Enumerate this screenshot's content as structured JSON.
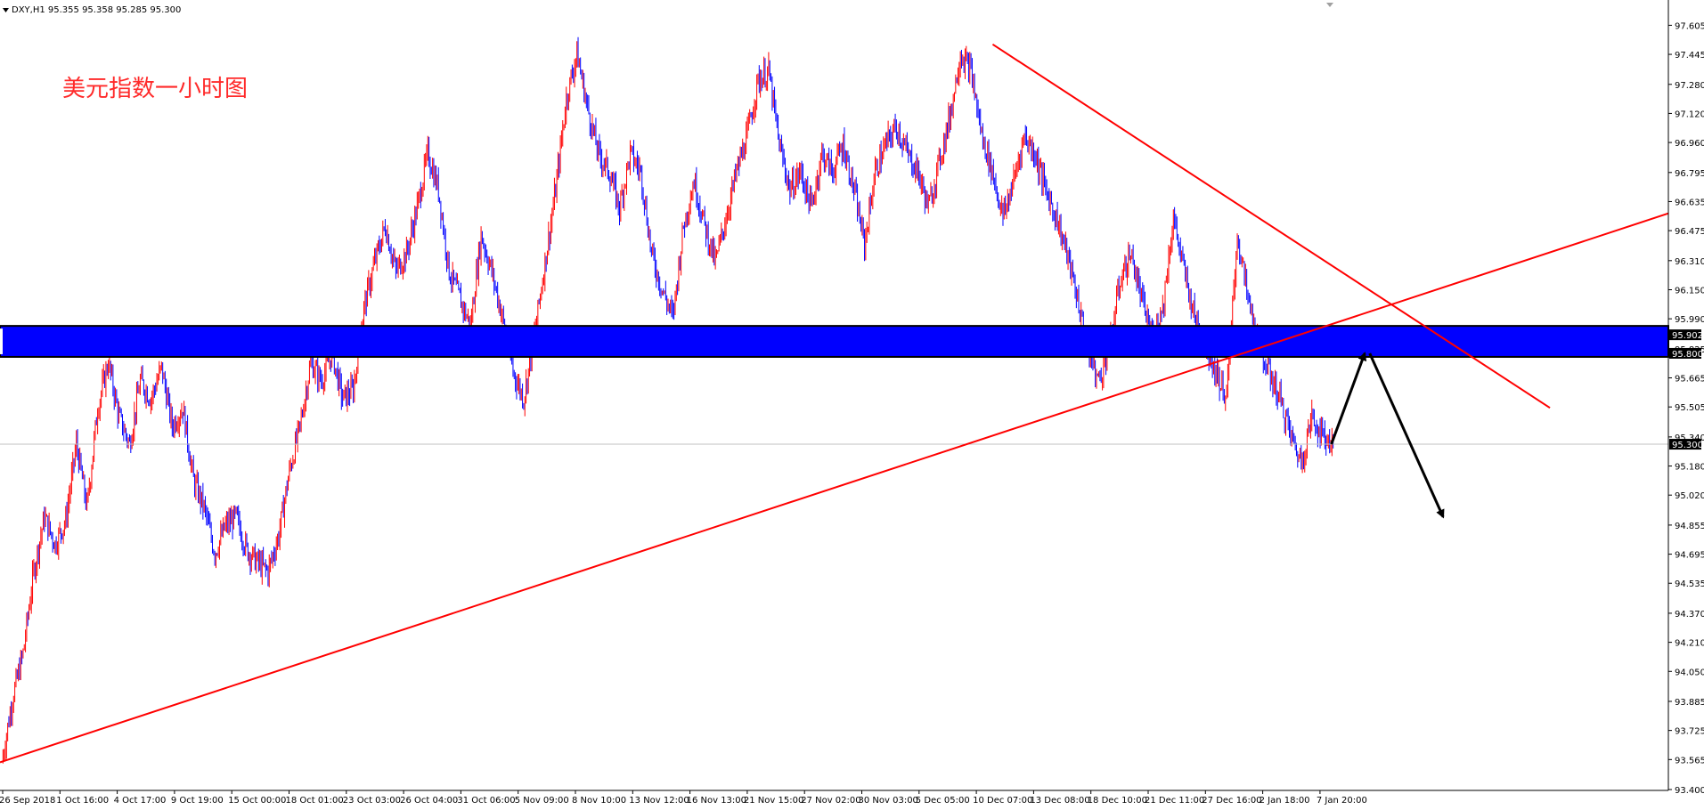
{
  "header": {
    "symbol_info": "DXY,H1  95.355 95.358 95.285 95.300"
  },
  "annotation_title": "美元指数一小时图",
  "colors": {
    "up": "#ff0000",
    "down": "#0000ff",
    "trendline": "#ff0000",
    "zone": "#0000ff",
    "arrow": "#000000",
    "axis": "#000000",
    "current_price_line": "#c0c0c0"
  },
  "chart_data": {
    "type": "line",
    "symbol": "DXY",
    "timeframe": "H1",
    "ylim": [
      93.4,
      97.7
    ],
    "y_ticks": [
      "97.605",
      "97.445",
      "97.280",
      "97.120",
      "96.960",
      "96.795",
      "96.635",
      "96.475",
      "96.310",
      "96.150",
      "95.990",
      "95.825",
      "95.665",
      "95.505",
      "95.340",
      "95.180",
      "95.020",
      "94.855",
      "94.695",
      "94.535",
      "94.370",
      "94.210",
      "94.050",
      "93.885",
      "93.725",
      "93.565",
      "93.400"
    ],
    "x_ticks": [
      "26 Sep 2018",
      "1 Oct 16:00",
      "4 Oct 17:00",
      "9 Oct 19:00",
      "15 Oct 00:00",
      "18 Oct 01:00",
      "23 Oct 03:00",
      "26 Oct 04:00",
      "31 Oct 06:00",
      "5 Nov 09:00",
      "8 Nov 10:00",
      "13 Nov 12:00",
      "16 Nov 13:00",
      "21 Nov 15:00",
      "27 Nov 02:00",
      "30 Nov 03:00",
      "5 Dec 05:00",
      "10 Dec 07:00",
      "13 Dec 08:00",
      "18 Dec 10:00",
      "21 Dec 11:00",
      "27 Dec 16:00",
      "2 Jan 18:00",
      "7 Jan 20:00"
    ],
    "series": [
      {
        "values": [
          93.55,
          93.9,
          94.15,
          94.6,
          94.9,
          94.75,
          94.88,
          95.3,
          94.95,
          95.5,
          95.75,
          95.45,
          95.3,
          95.65,
          95.55,
          95.72,
          95.4,
          95.5,
          95.1,
          94.95,
          94.7,
          94.85,
          94.9,
          94.72,
          94.65,
          94.6,
          94.8,
          95.15,
          95.4,
          95.75,
          95.65,
          95.8,
          95.55,
          95.6,
          96.05,
          96.3,
          96.5,
          96.25,
          96.35,
          96.6,
          96.9,
          96.7,
          96.25,
          96.1,
          95.95,
          96.45,
          96.25,
          96.0,
          95.7,
          95.55,
          95.9,
          96.3,
          96.7,
          97.2,
          97.45,
          97.15,
          96.9,
          96.8,
          96.6,
          96.9,
          96.8,
          96.35,
          96.15,
          96.0,
          96.5,
          96.75,
          96.5,
          96.3,
          96.55,
          96.8,
          97.0,
          97.3,
          97.35,
          96.95,
          96.7,
          96.8,
          96.6,
          96.9,
          96.8,
          96.95,
          96.7,
          96.4,
          96.8,
          96.95,
          97.05,
          96.9,
          96.8,
          96.6,
          96.85,
          97.1,
          97.45,
          97.35,
          97.0,
          96.8,
          96.55,
          96.75,
          97.0,
          96.9,
          96.7,
          96.55,
          96.35,
          96.1,
          95.8,
          95.65,
          95.85,
          96.2,
          96.35,
          96.1,
          95.9,
          96.05,
          96.55,
          96.25,
          96.0,
          95.85,
          95.7,
          95.55,
          96.45,
          96.1,
          95.85,
          95.7,
          95.55,
          95.35,
          95.2,
          95.45,
          95.35,
          95.3
        ]
      }
    ],
    "current_price": 95.3,
    "resistance_zone": {
      "top": 95.902,
      "bottom": 95.8,
      "top_label": "95.902",
      "bottom_label": "95.800"
    },
    "current_price_label": "95.300",
    "trendlines": [
      {
        "name": "ascending-support",
        "from": {
          "x": 0.0,
          "y": 93.55
        },
        "to": {
          "x": 1.0,
          "y": 96.57
        }
      },
      {
        "name": "descending-resistance",
        "from": {
          "x": 0.595,
          "y": 97.5
        },
        "to": {
          "x": 0.929,
          "y": 95.5
        }
      }
    ],
    "projection_arrows": [
      {
        "from": {
          "x": 0.798,
          "y": 95.3
        },
        "to": {
          "x": 0.818,
          "y": 95.8
        }
      },
      {
        "from": {
          "x": 0.821,
          "y": 95.8
        },
        "to": {
          "x": 0.865,
          "y": 94.9
        }
      }
    ],
    "grid": false,
    "legend": "none"
  }
}
